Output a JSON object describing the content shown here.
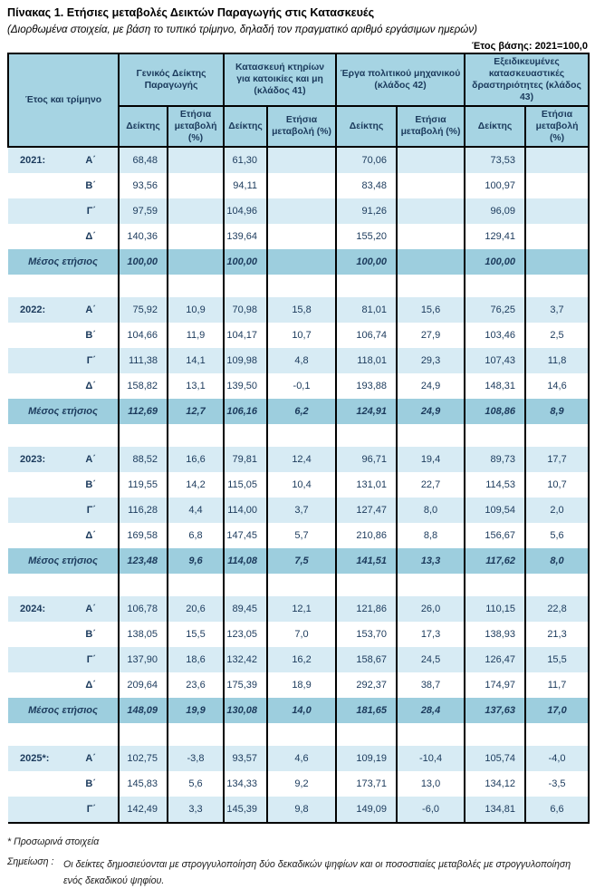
{
  "title": "Πίνακας 1. Ετήσιες μεταβολές Δεικτών Παραγωγής στις Κατασκευές",
  "subtitle": "(Διορθωμένα στοιχεία, με βάση το τυπικό τρίμηνο, δηλαδή τον πραγματικό αριθμό εργάσιμων ημερών)",
  "base_year": "Έτος βάσης: 2021=100,0",
  "colors": {
    "header_blue": "#a6d4e3",
    "stripe_blue": "#d7ebf4",
    "mean_row_blue": "#9dcede",
    "text_navy": "#1b3a5c",
    "border": "#000000"
  },
  "table": {
    "row_header": "Έτος και τρίμηνο",
    "groups": [
      "Γενικός Δείκτης Παραγωγής",
      "Κατασκευή κτηρίων για κατοικίες και μη (κλάδος 41)",
      "Έργα πολιτικού μηχανικού (κλάδος 42)",
      "Εξειδικευμένες κατασκευαστικές δραστηριότητες (κλάδος 43)"
    ],
    "subheaders": {
      "index": "Δείκτης",
      "change": "Ετήσια μεταβολή (%)"
    },
    "mean_label": "Μέσος ετήσιος",
    "blocks": [
      {
        "year": "2021:",
        "rows": [
          {
            "quarter": "Α΄",
            "values": [
              "68,48",
              "",
              "61,30",
              "",
              "70,06",
              "",
              "73,53",
              ""
            ]
          },
          {
            "quarter": "Β΄",
            "values": [
              "93,56",
              "",
              "94,11",
              "",
              "83,48",
              "",
              "100,97",
              ""
            ]
          },
          {
            "quarter": "Γ΄",
            "values": [
              "97,59",
              "",
              "104,96",
              "",
              "91,26",
              "",
              "96,09",
              ""
            ]
          },
          {
            "quarter": "Δ΄",
            "values": [
              "140,36",
              "",
              "139,64",
              "",
              "155,20",
              "",
              "129,41",
              ""
            ]
          }
        ],
        "mean": [
          "100,00",
          "",
          "100,00",
          "",
          "100,00",
          "",
          "100,00",
          ""
        ]
      },
      {
        "year": "2022:",
        "rows": [
          {
            "quarter": "Α΄",
            "values": [
              "75,92",
              "10,9",
              "70,98",
              "15,8",
              "81,01",
              "15,6",
              "76,25",
              "3,7"
            ]
          },
          {
            "quarter": "Β΄",
            "values": [
              "104,66",
              "11,9",
              "104,17",
              "10,7",
              "106,74",
              "27,9",
              "103,46",
              "2,5"
            ]
          },
          {
            "quarter": "Γ΄",
            "values": [
              "111,38",
              "14,1",
              "109,98",
              "4,8",
              "118,01",
              "29,3",
              "107,43",
              "11,8"
            ]
          },
          {
            "quarter": "Δ΄",
            "values": [
              "158,82",
              "13,1",
              "139,50",
              "-0,1",
              "193,88",
              "24,9",
              "148,31",
              "14,6"
            ]
          }
        ],
        "mean": [
          "112,69",
          "12,7",
          "106,16",
          "6,2",
          "124,91",
          "24,9",
          "108,86",
          "8,9"
        ]
      },
      {
        "year": "2023:",
        "rows": [
          {
            "quarter": "Α΄",
            "values": [
              "88,52",
              "16,6",
              "79,81",
              "12,4",
              "96,71",
              "19,4",
              "89,73",
              "17,7"
            ]
          },
          {
            "quarter": "Β΄",
            "values": [
              "119,55",
              "14,2",
              "115,05",
              "10,4",
              "131,01",
              "22,7",
              "114,53",
              "10,7"
            ]
          },
          {
            "quarter": "Γ΄",
            "values": [
              "116,28",
              "4,4",
              "114,00",
              "3,7",
              "127,47",
              "8,0",
              "109,54",
              "2,0"
            ]
          },
          {
            "quarter": "Δ΄",
            "values": [
              "169,58",
              "6,8",
              "147,45",
              "5,7",
              "210,86",
              "8,8",
              "156,67",
              "5,6"
            ]
          }
        ],
        "mean": [
          "123,48",
          "9,6",
          "114,08",
          "7,5",
          "141,51",
          "13,3",
          "117,62",
          "8,0"
        ]
      },
      {
        "year": "2024:",
        "rows": [
          {
            "quarter": "Α΄",
            "values": [
              "106,78",
              "20,6",
              "89,45",
              "12,1",
              "121,86",
              "26,0",
              "110,15",
              "22,8"
            ]
          },
          {
            "quarter": "Β΄",
            "values": [
              "138,05",
              "15,5",
              "123,05",
              "7,0",
              "153,70",
              "17,3",
              "138,93",
              "21,3"
            ]
          },
          {
            "quarter": "Γ΄",
            "values": [
              "137,90",
              "18,6",
              "132,42",
              "16,2",
              "158,67",
              "24,5",
              "126,47",
              "15,5"
            ]
          },
          {
            "quarter": "Δ΄",
            "values": [
              "209,64",
              "23,6",
              "175,39",
              "18,9",
              "292,37",
              "38,7",
              "174,97",
              "11,7"
            ]
          }
        ],
        "mean": [
          "148,09",
          "19,9",
          "130,08",
          "14,0",
          "181,65",
          "28,4",
          "137,63",
          "17,0"
        ]
      },
      {
        "year": "2025*:",
        "rows": [
          {
            "quarter": "Α΄",
            "values": [
              "102,75",
              "-3,8",
              "93,57",
              "4,6",
              "109,19",
              "-10,4",
              "105,74",
              "-4,0"
            ]
          },
          {
            "quarter": "Β΄",
            "values": [
              "145,83",
              "5,6",
              "134,33",
              "9,2",
              "173,71",
              "13,0",
              "134,12",
              "-3,5"
            ]
          },
          {
            "quarter": "Γ΄",
            "values": [
              "142,49",
              "3,3",
              "145,39",
              "9,8",
              "149,09",
              "-6,0",
              "134,81",
              "6,6"
            ]
          }
        ],
        "mean": null
      }
    ]
  },
  "footnotes": {
    "provisional": "* Προσωρινά στοιχεία",
    "note_label": "Σημείωση :",
    "note_text": "Οι δείκτες δημοσιεύονται με στρογγυλοποίηση δύο δεκαδικών ψηφίων και οι ποσοστιαίες μεταβολές με στρογγυλοποίηση ενός δεκαδικού ψηφίου."
  }
}
